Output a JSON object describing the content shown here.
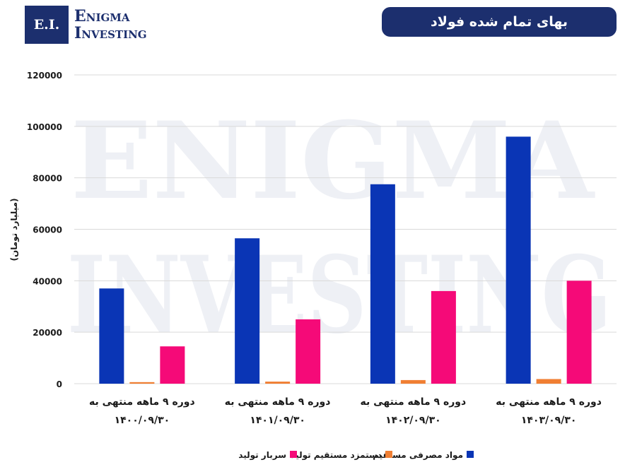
{
  "logo": {
    "initials": "E.I.",
    "line1": "Enigma",
    "line2": "Investing"
  },
  "watermark": {
    "line1": "ENIGMA",
    "line2": "INVESTING"
  },
  "chart_data": {
    "type": "bar",
    "title": "بهای تمام شده فولاد",
    "ylabel": "(میلیارد تومان)",
    "ylim": [
      0,
      120000
    ],
    "yticks": [
      0,
      20000,
      40000,
      60000,
      80000,
      100000,
      120000
    ],
    "ytick_labels": [
      "0",
      "20000",
      "40000",
      "60000",
      "80000",
      "100000",
      "120000"
    ],
    "categories": [
      {
        "line1": "دوره ۹ ماهه منتهی به",
        "line2": "۱۴۰۰/۰۹/۳۰"
      },
      {
        "line1": "دوره ۹ ماهه منتهی به",
        "line2": "۱۴۰۱/۰۹/۳۰"
      },
      {
        "line1": "دوره ۹ ماهه منتهی به",
        "line2": "۱۴۰۲/۰۹/۳۰"
      },
      {
        "line1": "دوره ۹ ماهه منتهی به",
        "line2": "۱۴۰۳/۰۹/۳۰"
      }
    ],
    "series": [
      {
        "name": "مواد مصرفی مستقیم",
        "color": "#0a35b5",
        "values": [
          37000,
          56500,
          77500,
          96000
        ]
      },
      {
        "name": "دستمزد مستقیم تولید",
        "color": "#f07f33",
        "values": [
          600,
          800,
          1400,
          1800
        ]
      },
      {
        "name": "سربار تولید",
        "color": "#f50a78",
        "values": [
          14500,
          25000,
          36000,
          40000
        ]
      }
    ],
    "grid": true,
    "legend": "bottom"
  }
}
